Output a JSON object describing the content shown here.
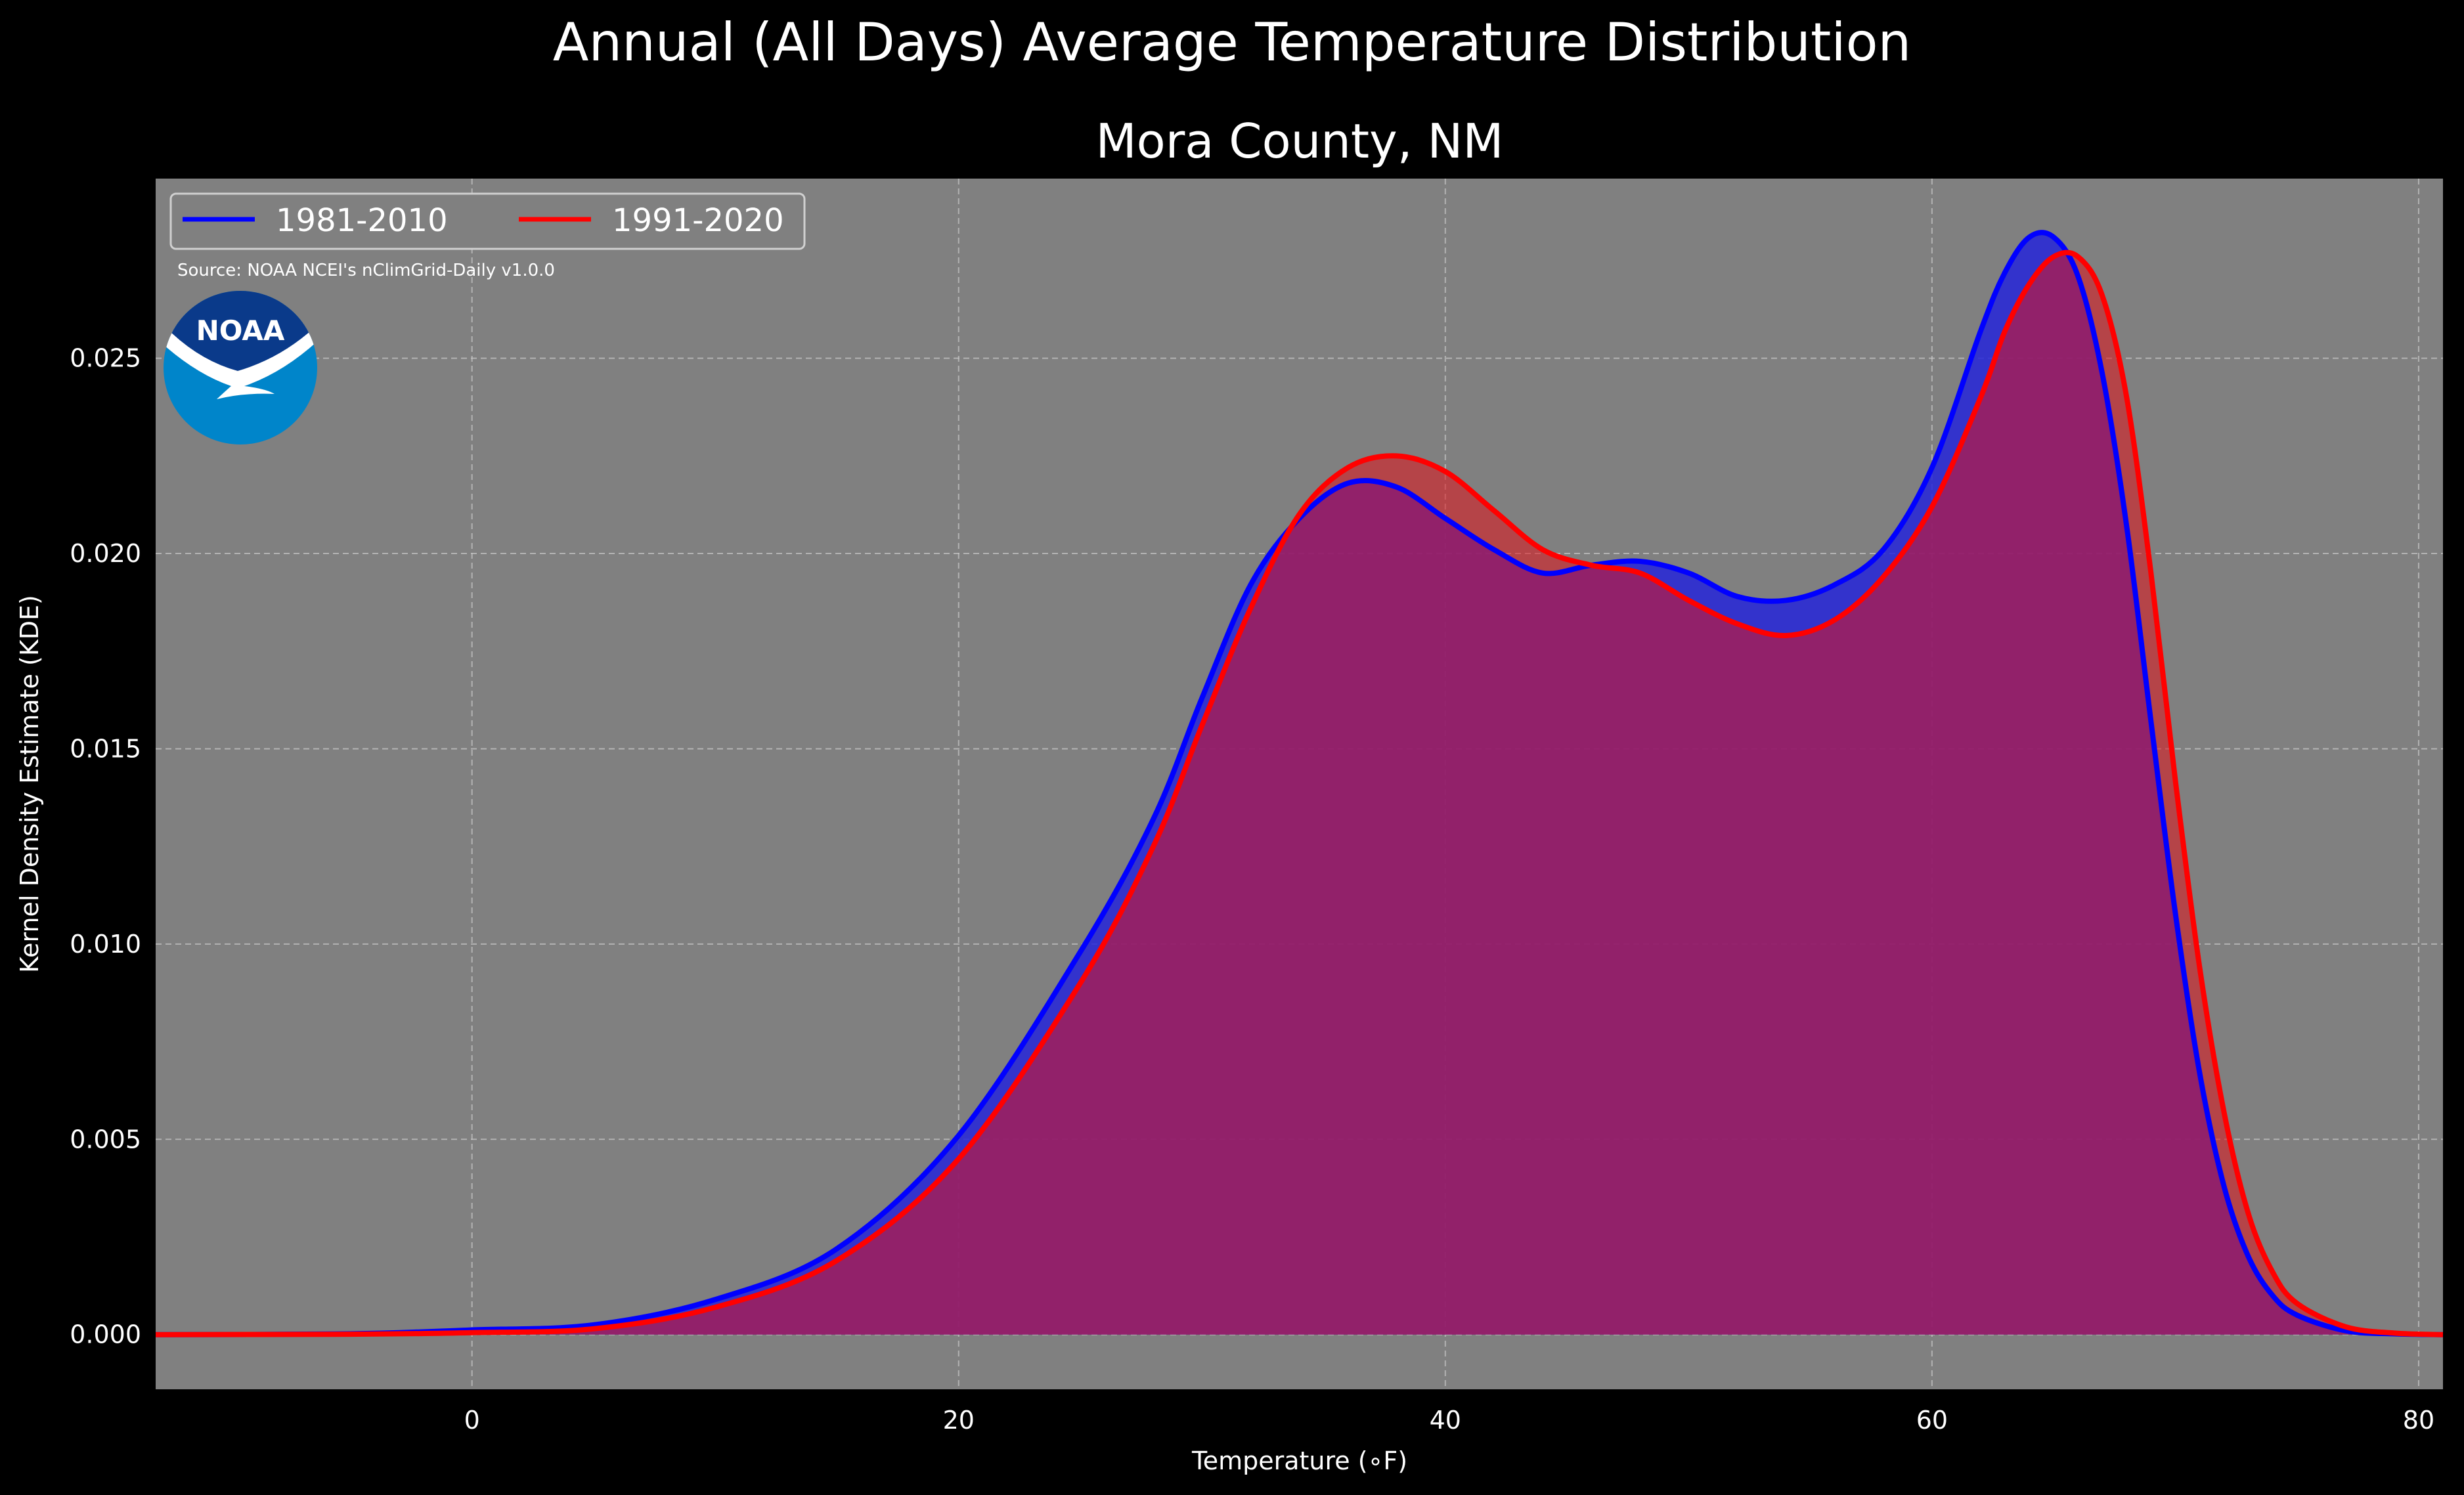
{
  "page": {
    "suptitle": "Annual (All Days) Average Temperature Distribution",
    "source": "Source: NOAA NCEI's nClimGrid-Daily v1.0.0",
    "logo_text": "NOAA"
  },
  "colors": {
    "background": "#000000",
    "plot_background": "#808080",
    "series_1": "#0000ff",
    "series_2": "#ff0000",
    "overlap_fill": "#9c1c5c",
    "logo_blue_dark": "#0a3a8a",
    "logo_blue_light": "#0085ca"
  },
  "chart_data": {
    "type": "area",
    "title": "Mora County, NM",
    "xlabel": "Temperature (∘F)",
    "ylabel": "Kernel Density Estimate (KDE)",
    "xlim": [
      -13,
      81
    ],
    "ylim": [
      -0.0014,
      0.0296
    ],
    "x_ticks": [
      0,
      20,
      40,
      60,
      80
    ],
    "y_ticks": [
      0.0,
      0.005,
      0.01,
      0.015,
      0.02,
      0.025
    ],
    "y_tick_labels": [
      "0.000",
      "0.005",
      "0.010",
      "0.015",
      "0.020",
      "0.025"
    ],
    "grid": true,
    "legend_position": "top-left",
    "series": [
      {
        "name": "1981-2010",
        "color": "#0000ff",
        "x": [
          -13,
          -5,
          0,
          5,
          10,
          15,
          20,
          25,
          28,
          30,
          32,
          34,
          36,
          38,
          40,
          42,
          44,
          46,
          48,
          50,
          52,
          54,
          56,
          58,
          60,
          62,
          63,
          64,
          65,
          66,
          67,
          68,
          69,
          70,
          71,
          72,
          73,
          74,
          75,
          77,
          79,
          81
        ],
        "y": [
          0.0,
          2e-05,
          0.00012,
          0.00025,
          0.0009,
          0.0022,
          0.0051,
          0.0098,
          0.0132,
          0.0163,
          0.0192,
          0.0209,
          0.0218,
          0.0217,
          0.0209,
          0.0201,
          0.0195,
          0.0197,
          0.0198,
          0.0195,
          0.0189,
          0.0188,
          0.0192,
          0.0201,
          0.0222,
          0.0257,
          0.0272,
          0.0281,
          0.0281,
          0.0271,
          0.0246,
          0.0207,
          0.0157,
          0.0108,
          0.0067,
          0.0038,
          0.002,
          0.001,
          0.0005,
          0.0001,
          2e-05,
          0.0
        ]
      },
      {
        "name": "1991-2020",
        "color": "#ff0000",
        "x": [
          -13,
          -5,
          0,
          5,
          10,
          15,
          20,
          25,
          28,
          30,
          32,
          34,
          36,
          38,
          40,
          42,
          44,
          46,
          48,
          50,
          52,
          54,
          56,
          58,
          60,
          62,
          63,
          64,
          65,
          66,
          67,
          68,
          69,
          70,
          71,
          72,
          73,
          74,
          75,
          77,
          79,
          81
        ],
        "y": [
          0.0,
          1e-05,
          5e-05,
          0.00015,
          0.0007,
          0.0019,
          0.0045,
          0.009,
          0.0125,
          0.0156,
          0.0186,
          0.021,
          0.0222,
          0.0225,
          0.0221,
          0.0211,
          0.0201,
          0.0197,
          0.0195,
          0.0188,
          0.0182,
          0.0179,
          0.0183,
          0.0194,
          0.0212,
          0.024,
          0.0257,
          0.0269,
          0.0276,
          0.0276,
          0.0266,
          0.024,
          0.0195,
          0.0142,
          0.0094,
          0.0057,
          0.0031,
          0.0016,
          0.0008,
          0.0002,
          4e-05,
          0.0
        ]
      }
    ]
  }
}
